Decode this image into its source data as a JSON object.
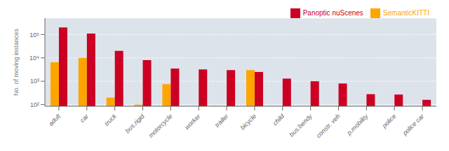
{
  "chart_data": {
    "type": "bar",
    "categories": [
      "adult",
      "car",
      "truck",
      "bus.rigid",
      "motorcycle",
      "worker",
      "trailer",
      "bicycle",
      "child",
      "bus.bendy",
      "constr. veh",
      "p.mobility",
      "police",
      "police car"
    ],
    "series": [
      {
        "name": "SemanticKITTI",
        "color": "#FFA500",
        "values": [
          6500,
          10000,
          200,
          100,
          750,
          null,
          null,
          3000,
          null,
          null,
          null,
          null,
          null,
          null
        ]
      },
      {
        "name": "Panoptic nuScenes",
        "color": "#CC0022",
        "values": [
          200000,
          110000,
          20000,
          8000,
          3500,
          3200,
          3000,
          2500,
          1300,
          1000,
          800,
          280,
          270,
          160
        ]
      }
    ],
    "y_label": "No. of moving instances",
    "log": "y",
    "ylim": [
      85,
      500000
    ],
    "yticks": [
      {
        "value": 100,
        "label": "10²"
      },
      {
        "value": 1000,
        "label": "10³"
      },
      {
        "value": 10000,
        "label": "10⁴"
      },
      {
        "value": 100000,
        "label": "10⁵"
      }
    ],
    "grid": true,
    "legend": "upper right"
  }
}
